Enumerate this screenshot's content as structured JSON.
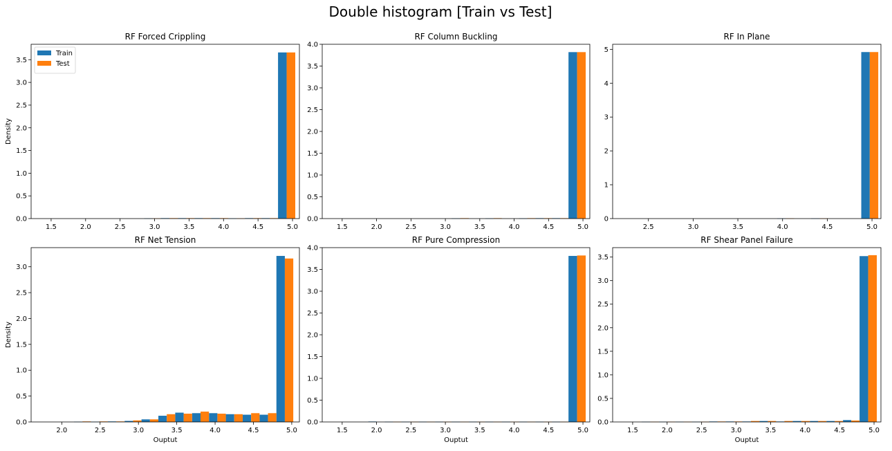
{
  "figure": {
    "title": "Double histogram [Train vs Test]",
    "colors": {
      "train": "#1f77b4",
      "test": "#ff7f0e"
    }
  },
  "chart_data": [
    {
      "type": "bar",
      "title": "RF Forced Crippling",
      "xlabel": "",
      "ylabel": "Density",
      "legend": {
        "placement": "top-left",
        "entries": [
          "Train",
          "Test"
        ]
      },
      "xlim": [
        1.21,
        5.1
      ],
      "ylim": [
        0,
        3.84
      ],
      "xticks": [
        1.5,
        2.0,
        2.5,
        3.0,
        3.5,
        4.0,
        4.5,
        5.0
      ],
      "xtick_labels": [
        "1.5",
        "2.0",
        "2.5",
        "3.0",
        "3.5",
        "4.0",
        "4.5",
        "5.0"
      ],
      "yticks": [
        0,
        0.5,
        1.0,
        1.5,
        2.0,
        2.5,
        3.0,
        3.5
      ],
      "ytick_labels": [
        "0.0",
        "0.5",
        "1.0",
        "1.5",
        "2.0",
        "2.5",
        "3.0",
        "3.5"
      ],
      "bin_edges": [
        1.39,
        1.63,
        1.88,
        2.12,
        2.36,
        2.61,
        2.85,
        3.09,
        3.34,
        3.58,
        3.82,
        4.07,
        4.31,
        4.55,
        4.79,
        5.04
      ],
      "series": [
        {
          "name": "Train",
          "values": [
            0,
            0,
            0,
            0,
            0,
            0,
            0.005,
            0.01,
            0.01,
            0.01,
            0.01,
            0.005,
            0.01,
            0.01,
            3.66
          ]
        },
        {
          "name": "Test",
          "values": [
            0,
            0,
            0,
            0,
            0,
            0,
            0.005,
            0.01,
            0.01,
            0.01,
            0.01,
            0.005,
            0.01,
            0.01,
            3.66
          ]
        }
      ]
    },
    {
      "type": "bar",
      "title": "RF Column Buckling",
      "xlabel": "",
      "ylabel": "",
      "xlim": [
        1.21,
        5.1
      ],
      "ylim": [
        0,
        4.0
      ],
      "xticks": [
        1.5,
        2.0,
        2.5,
        3.0,
        3.5,
        4.0,
        4.5,
        5.0
      ],
      "xtick_labels": [
        "1.5",
        "2.0",
        "2.5",
        "3.0",
        "3.5",
        "4.0",
        "4.5",
        "5.0"
      ],
      "yticks": [
        0,
        0.5,
        1.0,
        1.5,
        2.0,
        2.5,
        3.0,
        3.5,
        4.0
      ],
      "ytick_labels": [
        "0.0",
        "0.5",
        "1.0",
        "1.5",
        "2.0",
        "2.5",
        "3.0",
        "3.5",
        "4.0"
      ],
      "bin_edges": [
        1.39,
        1.63,
        1.88,
        2.12,
        2.36,
        2.61,
        2.85,
        3.09,
        3.34,
        3.58,
        3.82,
        4.07,
        4.31,
        4.55,
        4.79,
        5.04
      ],
      "series": [
        {
          "name": "Train",
          "values": [
            0,
            0,
            0,
            0,
            0,
            0,
            0,
            0.005,
            0,
            0.005,
            0,
            0.005,
            0.01,
            0.01,
            3.82
          ]
        },
        {
          "name": "Test",
          "values": [
            0,
            0,
            0,
            0,
            0,
            0,
            0,
            0.01,
            0,
            0.01,
            0,
            0.01,
            0.01,
            0.01,
            3.82
          ]
        }
      ]
    },
    {
      "type": "bar",
      "title": "RF In Plane",
      "xlabel": "",
      "ylabel": "",
      "xlim": [
        2.1,
        5.1
      ],
      "ylim": [
        0,
        5.15
      ],
      "xticks": [
        2.5,
        3.0,
        3.5,
        4.0,
        4.5,
        5.0
      ],
      "xtick_labels": [
        "2.5",
        "3.0",
        "3.5",
        "4.0",
        "4.5",
        "5.0"
      ],
      "yticks": [
        0,
        1,
        2,
        3,
        4,
        5
      ],
      "ytick_labels": [
        "0",
        "1",
        "2",
        "3",
        "4",
        "5"
      ],
      "bin_edges": [
        2.24,
        2.43,
        2.62,
        2.81,
        2.99,
        3.18,
        3.37,
        3.56,
        3.75,
        3.94,
        4.13,
        4.32,
        4.51,
        4.7,
        4.88,
        5.07
      ],
      "series": [
        {
          "name": "Train",
          "values": [
            0,
            0,
            0,
            0,
            0,
            0,
            0,
            0,
            0,
            0.005,
            0,
            0.005,
            0,
            0,
            4.92
          ]
        },
        {
          "name": "Test",
          "values": [
            0,
            0,
            0,
            0,
            0,
            0,
            0,
            0,
            0,
            0.005,
            0,
            0.005,
            0,
            0,
            4.92
          ]
        }
      ]
    },
    {
      "type": "bar",
      "title": "RF Net Tension",
      "xlabel": "Ouptut",
      "ylabel": "Density",
      "xlim": [
        1.6,
        5.1
      ],
      "ylim": [
        0,
        3.37
      ],
      "xticks": [
        2.0,
        2.5,
        3.0,
        3.5,
        4.0,
        4.5,
        5.0
      ],
      "xtick_labels": [
        "2.0",
        "2.5",
        "3.0",
        "3.5",
        "4.0",
        "4.5",
        "5.0"
      ],
      "yticks": [
        0,
        0.5,
        1.0,
        1.5,
        2.0,
        2.5,
        3.0
      ],
      "ytick_labels": [
        "0.0",
        "0.5",
        "1.0",
        "1.5",
        "2.0",
        "2.5",
        "3.0"
      ],
      "bin_edges": [
        1.72,
        1.94,
        2.16,
        2.38,
        2.6,
        2.82,
        3.04,
        3.26,
        3.48,
        3.7,
        3.92,
        4.14,
        4.36,
        4.58,
        4.8,
        5.02
      ],
      "series": [
        {
          "name": "Train",
          "values": [
            0,
            0,
            0.005,
            0.005,
            0.01,
            0.02,
            0.05,
            0.12,
            0.18,
            0.17,
            0.17,
            0.15,
            0.14,
            0.14,
            3.21
          ]
        },
        {
          "name": "Test",
          "values": [
            0,
            0,
            0.01,
            0.01,
            0.01,
            0.03,
            0.05,
            0.15,
            0.16,
            0.2,
            0.16,
            0.15,
            0.17,
            0.17,
            3.16
          ]
        }
      ]
    },
    {
      "type": "bar",
      "title": "RF Pure Compression",
      "xlabel": "Ouptut",
      "ylabel": "",
      "xlim": [
        1.21,
        5.1
      ],
      "ylim": [
        0,
        4.0
      ],
      "xticks": [
        1.5,
        2.0,
        2.5,
        3.0,
        3.5,
        4.0,
        4.5,
        5.0
      ],
      "xtick_labels": [
        "1.5",
        "2.0",
        "2.5",
        "3.0",
        "3.5",
        "4.0",
        "4.5",
        "5.0"
      ],
      "yticks": [
        0,
        0.5,
        1.0,
        1.5,
        2.0,
        2.5,
        3.0,
        3.5,
        4.0
      ],
      "ytick_labels": [
        "0.0",
        "0.5",
        "1.0",
        "1.5",
        "2.0",
        "2.5",
        "3.0",
        "3.5",
        "4.0"
      ],
      "bin_edges": [
        1.39,
        1.63,
        1.88,
        2.12,
        2.36,
        2.61,
        2.85,
        3.09,
        3.34,
        3.58,
        3.82,
        4.07,
        4.31,
        4.55,
        4.79,
        5.04
      ],
      "series": [
        {
          "name": "Train",
          "values": [
            0,
            0,
            0.01,
            0.005,
            0.005,
            0.005,
            0.005,
            0.005,
            0.005,
            0.005,
            0.005,
            0.005,
            0.005,
            0.005,
            3.81
          ]
        },
        {
          "name": "Test",
          "values": [
            0,
            0,
            0,
            0.005,
            0.005,
            0.005,
            0.005,
            0.005,
            0.005,
            0.005,
            0.005,
            0.005,
            0.005,
            0.005,
            3.82
          ]
        }
      ]
    },
    {
      "type": "bar",
      "title": "RF Shear Panel Failure",
      "xlabel": "Ouptut",
      "ylabel": "",
      "xlim": [
        1.21,
        5.1
      ],
      "ylim": [
        0,
        3.7
      ],
      "xticks": [
        1.5,
        2.0,
        2.5,
        3.0,
        3.5,
        4.0,
        4.5,
        5.0
      ],
      "xtick_labels": [
        "1.5",
        "2.0",
        "2.5",
        "3.0",
        "3.5",
        "4.0",
        "4.5",
        "5.0"
      ],
      "yticks": [
        0,
        0.5,
        1.0,
        1.5,
        2.0,
        2.5,
        3.0,
        3.5
      ],
      "ytick_labels": [
        "0.0",
        "0.5",
        "1.0",
        "1.5",
        "2.0",
        "2.5",
        "3.0",
        "3.5"
      ],
      "bin_edges": [
        1.39,
        1.63,
        1.88,
        2.12,
        2.36,
        2.61,
        2.85,
        3.09,
        3.34,
        3.58,
        3.82,
        4.07,
        4.31,
        4.55,
        4.79,
        5.04
      ],
      "series": [
        {
          "name": "Train",
          "values": [
            0,
            0.005,
            0.005,
            0.005,
            0.005,
            0.01,
            0.01,
            0.01,
            0.02,
            0.01,
            0.02,
            0.02,
            0.02,
            0.04,
            3.52
          ]
        },
        {
          "name": "Test",
          "values": [
            0,
            0.005,
            0.005,
            0.005,
            0.005,
            0.01,
            0.01,
            0.02,
            0.02,
            0.02,
            0.02,
            0.02,
            0.02,
            0.03,
            3.54
          ]
        }
      ]
    }
  ]
}
